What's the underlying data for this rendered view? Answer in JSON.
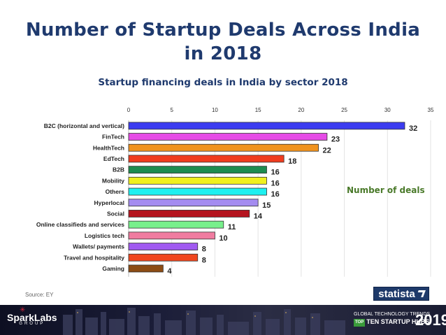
{
  "page": {
    "title_line1": "Number of Startup Deals Across India",
    "title_line2": "in 2018",
    "source": "Source: EY",
    "statista_logo_text": "statista",
    "brand_name": "SparkLabs",
    "brand_sub": "GROUP",
    "footer_line1": "GLOBAL TECHNOLOGY TRENDS",
    "footer_badge": "TOP",
    "footer_line2": "TEN STARTUP HUBS",
    "footer_year": "2019"
  },
  "chart_data": {
    "type": "bar",
    "orientation": "horizontal",
    "title": "Startup financing deals in India by sector 2018",
    "legend_label": "Number of deals",
    "xlim": [
      0,
      35
    ],
    "xticks": [
      0,
      5,
      10,
      15,
      20,
      25,
      30,
      35
    ],
    "grid": true,
    "categories": [
      "B2C (horizontal and vertical)",
      "FinTech",
      "HealthTech",
      "EdTech",
      "B2B",
      "Mobility",
      "Others",
      "Hyperlocal",
      "Social",
      "Online classifieds and services",
      "Logistics tech",
      "Wallets/ payments",
      "Travel and hospitality",
      "Gaming"
    ],
    "values": [
      32,
      23,
      22,
      18,
      16,
      16,
      16,
      15,
      14,
      11,
      10,
      8,
      8,
      4
    ],
    "colors": [
      "#3c3cf0",
      "#e64ce6",
      "#f0921e",
      "#f03c1e",
      "#1e8c50",
      "#f0f01e",
      "#1ef0f0",
      "#a48cf0",
      "#b4141e",
      "#78f08c",
      "#f07ca0",
      "#a05af0",
      "#f0461e",
      "#8c4c14"
    ]
  }
}
